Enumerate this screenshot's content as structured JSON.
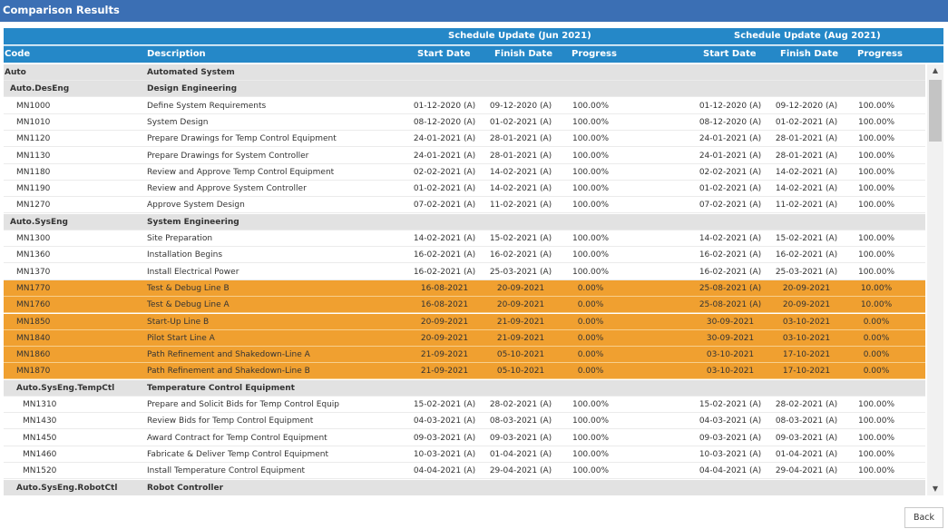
{
  "title": "Comparison Results",
  "header": {
    "group_jun": "Schedule Update (Jun 2021)",
    "group_aug": "Schedule Update (Aug 2021)",
    "code": "Code",
    "description": "Description",
    "start_date": "Start Date",
    "finish_date": "Finish Date",
    "progress": "Progress"
  },
  "highlight_color": "#f0a030",
  "header_color": "#2588c8",
  "titlebar_color": "#3b6fb4",
  "rows": [
    {
      "type": "group",
      "level": 0,
      "code": "Auto",
      "desc": "Automated System"
    },
    {
      "type": "group",
      "level": 1,
      "code": "Auto.DesEng",
      "desc": "Design Engineering"
    },
    {
      "type": "task",
      "level": 2,
      "code": "MN1000",
      "desc": "Define System Requirements",
      "s1": "01-12-2020 (A)",
      "f1": "09-12-2020 (A)",
      "p1": "100.00%",
      "s2": "01-12-2020 (A)",
      "f2": "09-12-2020 (A)",
      "p2": "100.00%"
    },
    {
      "type": "task",
      "level": 2,
      "code": "MN1010",
      "desc": "System Design",
      "s1": "08-12-2020 (A)",
      "f1": "01-02-2021 (A)",
      "p1": "100.00%",
      "s2": "08-12-2020 (A)",
      "f2": "01-02-2021 (A)",
      "p2": "100.00%"
    },
    {
      "type": "task",
      "level": 2,
      "code": "MN1120",
      "desc": "Prepare Drawings for Temp Control Equipment",
      "s1": "24-01-2021 (A)",
      "f1": "28-01-2021 (A)",
      "p1": "100.00%",
      "s2": "24-01-2021 (A)",
      "f2": "28-01-2021 (A)",
      "p2": "100.00%"
    },
    {
      "type": "task",
      "level": 2,
      "code": "MN1130",
      "desc": "Prepare Drawings for System Controller",
      "s1": "24-01-2021 (A)",
      "f1": "28-01-2021 (A)",
      "p1": "100.00%",
      "s2": "24-01-2021 (A)",
      "f2": "28-01-2021 (A)",
      "p2": "100.00%"
    },
    {
      "type": "task",
      "level": 2,
      "code": "MN1180",
      "desc": "Review and Approve Temp Control Equipment",
      "s1": "02-02-2021 (A)",
      "f1": "14-02-2021 (A)",
      "p1": "100.00%",
      "s2": "02-02-2021 (A)",
      "f2": "14-02-2021 (A)",
      "p2": "100.00%"
    },
    {
      "type": "task",
      "level": 2,
      "code": "MN1190",
      "desc": "Review and Approve System Controller",
      "s1": "01-02-2021 (A)",
      "f1": "14-02-2021 (A)",
      "p1": "100.00%",
      "s2": "01-02-2021 (A)",
      "f2": "14-02-2021 (A)",
      "p2": "100.00%"
    },
    {
      "type": "task",
      "level": 2,
      "code": "MN1270",
      "desc": "Approve System Design",
      "s1": "07-02-2021 (A)",
      "f1": "11-02-2021 (A)",
      "p1": "100.00%",
      "s2": "07-02-2021 (A)",
      "f2": "11-02-2021 (A)",
      "p2": "100.00%"
    },
    {
      "type": "group",
      "level": 1,
      "code": "Auto.SysEng",
      "desc": "System Engineering"
    },
    {
      "type": "task",
      "level": 2,
      "code": "MN1300",
      "desc": "Site Preparation",
      "s1": "14-02-2021 (A)",
      "f1": "15-02-2021 (A)",
      "p1": "100.00%",
      "s2": "14-02-2021 (A)",
      "f2": "15-02-2021 (A)",
      "p2": "100.00%"
    },
    {
      "type": "task",
      "level": 2,
      "code": "MN1360",
      "desc": "Installation Begins",
      "s1": "16-02-2021 (A)",
      "f1": "16-02-2021 (A)",
      "p1": "100.00%",
      "s2": "16-02-2021 (A)",
      "f2": "16-02-2021 (A)",
      "p2": "100.00%"
    },
    {
      "type": "task",
      "level": 2,
      "code": "MN1370",
      "desc": "Install Electrical Power",
      "s1": "16-02-2021 (A)",
      "f1": "25-03-2021 (A)",
      "p1": "100.00%",
      "s2": "16-02-2021 (A)",
      "f2": "25-03-2021 (A)",
      "p2": "100.00%"
    },
    {
      "type": "changed",
      "level": 2,
      "code": "MN1770",
      "desc": "Test & Debug Line B",
      "s1": "16-08-2021",
      "f1": "20-09-2021",
      "p1": "0.00%",
      "s2": "25-08-2021 (A)",
      "f2": "20-09-2021",
      "p2": "10.00%"
    },
    {
      "type": "changed",
      "level": 2,
      "code": "MN1760",
      "desc": "Test & Debug Line A",
      "s1": "16-08-2021",
      "f1": "20-09-2021",
      "p1": "0.00%",
      "s2": "25-08-2021 (A)",
      "f2": "20-09-2021",
      "p2": "10.00%"
    },
    {
      "type": "changed",
      "level": 2,
      "code": "MN1850",
      "desc": "Start-Up Line B",
      "s1": "20-09-2021",
      "f1": "21-09-2021",
      "p1": "0.00%",
      "s2": "30-09-2021",
      "f2": "03-10-2021",
      "p2": "0.00%"
    },
    {
      "type": "changed",
      "level": 2,
      "code": "MN1840",
      "desc": "Pilot Start Line A",
      "s1": "20-09-2021",
      "f1": "21-09-2021",
      "p1": "0.00%",
      "s2": "30-09-2021",
      "f2": "03-10-2021",
      "p2": "0.00%"
    },
    {
      "type": "changed",
      "level": 2,
      "code": "MN1860",
      "desc": "Path Refinement and Shakedown-Line A",
      "s1": "21-09-2021",
      "f1": "05-10-2021",
      "p1": "0.00%",
      "s2": "03-10-2021",
      "f2": "17-10-2021",
      "p2": "0.00%"
    },
    {
      "type": "changed",
      "level": 2,
      "code": "MN1870",
      "desc": "Path Refinement and Shakedown-Line B",
      "s1": "21-09-2021",
      "f1": "05-10-2021",
      "p1": "0.00%",
      "s2": "03-10-2021",
      "f2": "17-10-2021",
      "p2": "0.00%"
    },
    {
      "type": "group",
      "level": 2,
      "code": "Auto.SysEng.TempCtl",
      "desc": "Temperature Control Equipment"
    },
    {
      "type": "task",
      "level": 3,
      "code": "MN1310",
      "desc": "Prepare and Solicit Bids for Temp Control Equip",
      "s1": "15-02-2021 (A)",
      "f1": "28-02-2021 (A)",
      "p1": "100.00%",
      "s2": "15-02-2021 (A)",
      "f2": "28-02-2021 (A)",
      "p2": "100.00%"
    },
    {
      "type": "task",
      "level": 3,
      "code": "MN1430",
      "desc": "Review Bids for Temp Control Equipment",
      "s1": "04-03-2021 (A)",
      "f1": "08-03-2021 (A)",
      "p1": "100.00%",
      "s2": "04-03-2021 (A)",
      "f2": "08-03-2021 (A)",
      "p2": "100.00%"
    },
    {
      "type": "task",
      "level": 3,
      "code": "MN1450",
      "desc": "Award Contract for Temp Control Equipment",
      "s1": "09-03-2021 (A)",
      "f1": "09-03-2021 (A)",
      "p1": "100.00%",
      "s2": "09-03-2021 (A)",
      "f2": "09-03-2021 (A)",
      "p2": "100.00%"
    },
    {
      "type": "task",
      "level": 3,
      "code": "MN1460",
      "desc": "Fabricate & Deliver Temp Control Equipment",
      "s1": "10-03-2021 (A)",
      "f1": "01-04-2021 (A)",
      "p1": "100.00%",
      "s2": "10-03-2021 (A)",
      "f2": "01-04-2021 (A)",
      "p2": "100.00%"
    },
    {
      "type": "task",
      "level": 3,
      "code": "MN1520",
      "desc": "Install Temperature Control Equipment",
      "s1": "04-04-2021 (A)",
      "f1": "29-04-2021 (A)",
      "p1": "100.00%",
      "s2": "04-04-2021 (A)",
      "f2": "29-04-2021 (A)",
      "p2": "100.00%"
    },
    {
      "type": "group",
      "level": 2,
      "code": "Auto.SysEng.RobotCtl",
      "desc": "Robot Controller"
    }
  ],
  "scrollbar": {
    "up_icon": "triangle-up",
    "down_icon": "triangle-down"
  },
  "back_label": "Back"
}
